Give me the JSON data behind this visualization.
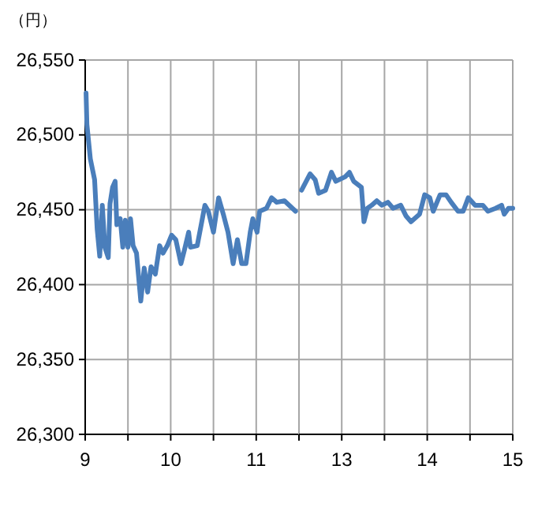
{
  "chart_data": [
    {
      "type": "line",
      "ylabel": "（円）",
      "xlim": [
        9,
        11.5
      ],
      "ylim": [
        26300,
        26550
      ],
      "xticks": [
        9,
        {
          "value": 9.5,
          "label": null
        },
        10,
        {
          "value": 10.5,
          "label": null
        },
        11,
        {
          "value": 11.5,
          "label": null
        }
      ],
      "yticks": [
        {
          "value": 26300,
          "label": "26,300"
        },
        {
          "value": 26350,
          "label": "26,350"
        },
        {
          "value": 26400,
          "label": "26,400"
        },
        {
          "value": 26450,
          "label": "26,450"
        },
        {
          "value": 26500,
          "label": "26,500"
        },
        {
          "value": 26550,
          "label": "26,550"
        }
      ],
      "grid": true,
      "marker": "none",
      "line_style": "solid",
      "x": [
        9.01,
        9.02,
        9.06,
        9.11,
        9.14,
        9.17,
        9.2,
        9.23,
        9.27,
        9.29,
        9.32,
        9.35,
        9.37,
        9.41,
        9.44,
        9.47,
        9.5,
        9.53,
        9.56,
        9.6,
        9.65,
        9.69,
        9.73,
        9.77,
        9.82,
        9.87,
        9.91,
        9.96,
        10.01,
        10.06,
        10.12,
        10.16,
        10.21,
        10.23,
        10.31,
        10.4,
        10.44,
        10.5,
        10.56,
        10.62,
        10.67,
        10.73,
        10.78,
        10.83,
        10.88,
        10.93,
        10.96,
        11.01,
        11.04,
        11.12,
        11.18,
        11.24,
        11.33,
        11.46
      ],
      "series": [
        {
          "color": "#4a7ebb",
          "values": [
            26528,
            26507,
            26484,
            26470,
            26437,
            26419,
            26453,
            26425,
            26418,
            26454,
            26465,
            26469,
            26440,
            26444,
            26425,
            26443,
            26425,
            26444,
            26426,
            26421,
            26389,
            26411,
            26395,
            26412,
            26407,
            26426,
            26421,
            26426,
            26433,
            26430,
            26414,
            26423,
            26435,
            26425,
            26426,
            26453,
            26449,
            26435,
            26458,
            26446,
            26435,
            26414,
            26430,
            26414,
            26414,
            26435,
            26444,
            26435,
            26449,
            26451,
            26458,
            26455,
            26456,
            26449
          ]
        }
      ]
    },
    {
      "type": "line",
      "xlim": [
        12.5,
        15
      ],
      "ylim": [
        26300,
        26550
      ],
      "tick_labels": "x",
      "xticks": [
        {
          "value": 12.5,
          "label": null
        },
        13,
        {
          "value": 13.5,
          "label": null
        },
        14,
        {
          "value": 14.5,
          "label": null
        },
        15
      ],
      "grid": true,
      "marker": "none",
      "line_style": "solid",
      "x": [
        12.53,
        12.63,
        12.69,
        12.73,
        12.81,
        12.88,
        12.93,
        13.04,
        13.09,
        13.14,
        13.23,
        13.26,
        13.3,
        13.35,
        13.41,
        13.47,
        13.54,
        13.6,
        13.69,
        13.75,
        13.81,
        13.91,
        13.97,
        14.03,
        14.07,
        14.15,
        14.22,
        14.28,
        14.36,
        14.42,
        14.48,
        14.56,
        14.65,
        14.71,
        14.8,
        14.87,
        14.9,
        14.95,
        15
      ],
      "series": [
        {
          "color": "#4a7ebb",
          "values": [
            26463,
            26474,
            26470,
            26461,
            26463,
            26475,
            26469,
            26472,
            26475,
            26469,
            26465,
            26442,
            26451,
            26453,
            26456,
            26453,
            26455,
            26451,
            26453,
            26446,
            26442,
            26447,
            26460,
            26458,
            26449,
            26460,
            26460,
            26455,
            26449,
            26449,
            26458,
            26453,
            26453,
            26449,
            26451,
            26453,
            26447,
            26451,
            26451
          ]
        }
      ]
    }
  ]
}
